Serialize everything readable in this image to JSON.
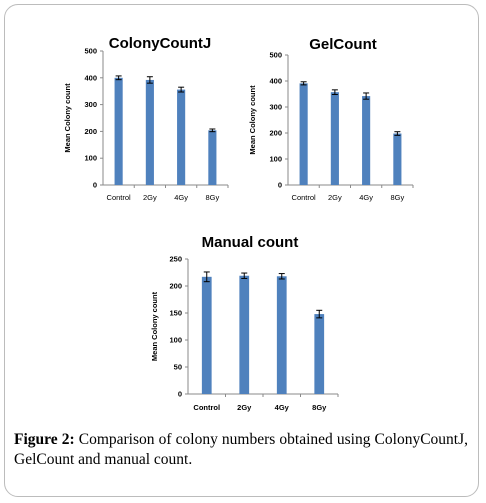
{
  "chart_data": [
    {
      "type": "bar",
      "title": "ColonyCountJ",
      "ylabel": "Mean Colony count",
      "xlabel": "",
      "categories": [
        "Control",
        "2Gy",
        "4Gy",
        "8Gy"
      ],
      "values": [
        400,
        392,
        356,
        204
      ],
      "errors": [
        7,
        12,
        9,
        5
      ],
      "ylim": [
        0,
        500
      ],
      "yticks": [
        "0",
        "100",
        "200",
        "300",
        "400",
        "500"
      ],
      "color": "#4f81bd",
      "grid": false
    },
    {
      "type": "bar",
      "title": "GelCount",
      "ylabel": "Mean Colony count",
      "xlabel": "",
      "categories": [
        "Control",
        "2Gy",
        "4Gy",
        "8Gy"
      ],
      "values": [
        391,
        357,
        342,
        198
      ],
      "errors": [
        6,
        9,
        12,
        7
      ],
      "ylim": [
        0,
        500
      ],
      "yticks": [
        "0",
        "100",
        "200",
        "300",
        "400",
        "500"
      ],
      "color": "#4f81bd",
      "grid": false
    },
    {
      "type": "bar",
      "title": "Manual count",
      "ylabel": "Mean Colony count",
      "xlabel": "",
      "categories": [
        "Control",
        "2Gy",
        "4Gy",
        "8Gy"
      ],
      "values": [
        217,
        219,
        218,
        148
      ],
      "errors": [
        9,
        5,
        5,
        7
      ],
      "ylim": [
        0,
        250
      ],
      "yticks": [
        "0",
        "50",
        "100",
        "150",
        "200",
        "250"
      ],
      "color": "#4f81bd",
      "grid": false
    }
  ],
  "caption": {
    "label": "Figure 2:",
    "text": "Comparison of colony numbers obtained using ColonyCountJ, GelCount and manual count."
  }
}
